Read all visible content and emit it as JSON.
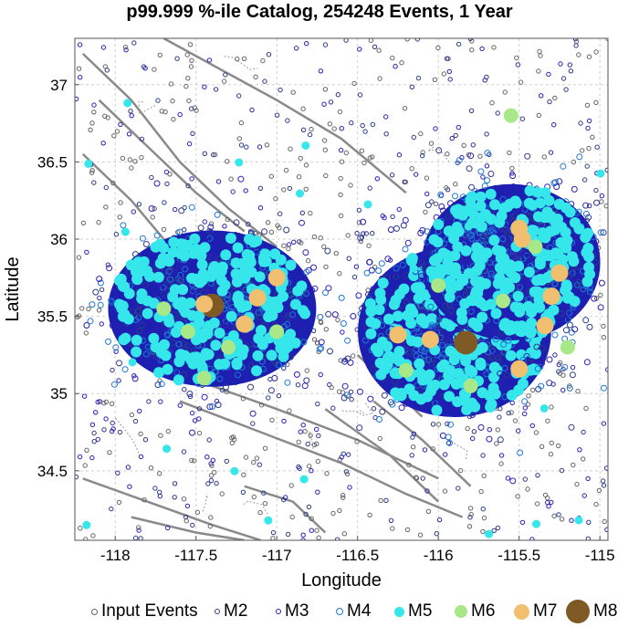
{
  "chart_data": {
    "type": "scatter",
    "title": "p99.999 %-ile Catalog, 254248 Events, 1 Year",
    "xlabel": "Longitude",
    "ylabel": "Latitude",
    "xlim": [
      -118.25,
      -114.95
    ],
    "ylim": [
      34.05,
      37.3
    ],
    "xticks": [
      -118,
      -117.5,
      -117,
      -116.5,
      -116,
      -115.5,
      -115
    ],
    "yticks": [
      34.5,
      35,
      35.5,
      36,
      36.5,
      37
    ],
    "grid": true,
    "legend_position": "bottom",
    "clusters": [
      {
        "center": [
          -117.4,
          35.55
        ],
        "radius": [
          0.7,
          0.55
        ]
      },
      {
        "center": [
          -115.9,
          35.4
        ],
        "radius": [
          0.65,
          0.6
        ]
      },
      {
        "center": [
          -115.55,
          35.85
        ],
        "radius": [
          0.6,
          0.55
        ]
      }
    ],
    "series": [
      {
        "name": "Input Events",
        "style": "ring",
        "color": "#666666",
        "fill": "none"
      },
      {
        "name": "M2",
        "style": "ring",
        "color": "#2b3a8c",
        "fill": "none"
      },
      {
        "name": "M3",
        "style": "ring",
        "color": "#2a1fb5",
        "fill": "none"
      },
      {
        "name": "M4",
        "style": "ring",
        "color": "#1e78d4",
        "fill": "none"
      },
      {
        "name": "M5",
        "style": "dot",
        "color": "#35e6ea",
        "fill": "#35e6ea"
      },
      {
        "name": "M6",
        "style": "dot",
        "color": "#a8e888",
        "fill": "#a8e888"
      },
      {
        "name": "M7",
        "style": "dot",
        "color": "#f0c070",
        "fill": "#f0c070"
      },
      {
        "name": "M8",
        "style": "dot",
        "color": "#7f5a25",
        "fill": "#7f5a25"
      }
    ],
    "big_events": [
      {
        "mag": "M8",
        "lon": -117.4,
        "lat": 35.57
      },
      {
        "mag": "M8",
        "lon": -115.83,
        "lat": 35.33
      },
      {
        "mag": "M7",
        "lon": -117.45,
        "lat": 35.58
      },
      {
        "mag": "M7",
        "lon": -117.2,
        "lat": 35.45
      },
      {
        "mag": "M7",
        "lon": -117.0,
        "lat": 35.75
      },
      {
        "mag": "M7",
        "lon": -117.12,
        "lat": 35.62
      },
      {
        "mag": "M7",
        "lon": -116.05,
        "lat": 35.35
      },
      {
        "mag": "M7",
        "lon": -116.25,
        "lat": 35.38
      },
      {
        "mag": "M7",
        "lon": -115.5,
        "lat": 35.16
      },
      {
        "mag": "M7",
        "lon": -115.34,
        "lat": 35.44
      },
      {
        "mag": "M7",
        "lon": -115.5,
        "lat": 36.07
      },
      {
        "mag": "M7",
        "lon": -115.25,
        "lat": 35.78
      },
      {
        "mag": "M7",
        "lon": -115.3,
        "lat": 35.63
      },
      {
        "mag": "M7",
        "lon": -115.48,
        "lat": 36.0
      },
      {
        "mag": "M6",
        "lon": -117.7,
        "lat": 35.55
      },
      {
        "mag": "M6",
        "lon": -117.55,
        "lat": 35.4
      },
      {
        "mag": "M6",
        "lon": -117.3,
        "lat": 35.3
      },
      {
        "mag": "M6",
        "lon": -117.45,
        "lat": 35.1
      },
      {
        "mag": "M6",
        "lon": -117.0,
        "lat": 35.4
      },
      {
        "mag": "M6",
        "lon": -116.2,
        "lat": 35.15
      },
      {
        "mag": "M6",
        "lon": -115.8,
        "lat": 35.05
      },
      {
        "mag": "M6",
        "lon": -115.6,
        "lat": 35.6
      },
      {
        "mag": "M6",
        "lon": -115.4,
        "lat": 35.95
      },
      {
        "mag": "M6",
        "lon": -115.55,
        "lat": 36.8
      },
      {
        "mag": "M6",
        "lon": -116.0,
        "lat": 35.7
      },
      {
        "mag": "M6",
        "lon": -115.2,
        "lat": 35.3
      }
    ],
    "fault_lines": [
      [
        [
          -118.2,
          37.2
        ],
        [
          -117.9,
          36.9
        ],
        [
          -117.6,
          36.5
        ],
        [
          -117.3,
          36.2
        ],
        [
          -117.0,
          35.95
        ]
      ],
      [
        [
          -118.1,
          36.9
        ],
        [
          -117.8,
          36.6
        ],
        [
          -117.5,
          36.3
        ],
        [
          -117.2,
          36.05
        ]
      ],
      [
        [
          -118.2,
          36.55
        ],
        [
          -117.9,
          36.25
        ],
        [
          -117.7,
          36.0
        ]
      ],
      [
        [
          -117.7,
          37.3
        ],
        [
          -117.0,
          36.9
        ],
        [
          -116.6,
          36.65
        ],
        [
          -116.2,
          36.3
        ]
      ],
      [
        [
          -117.6,
          34.95
        ],
        [
          -117.1,
          34.75
        ],
        [
          -116.6,
          34.55
        ],
        [
          -116.2,
          34.35
        ],
        [
          -115.85,
          34.2
        ]
      ],
      [
        [
          -117.4,
          35.05
        ],
        [
          -117.0,
          34.9
        ],
        [
          -116.5,
          34.7
        ],
        [
          -116.0,
          34.45
        ]
      ],
      [
        [
          -118.2,
          34.45
        ],
        [
          -117.8,
          34.3
        ],
        [
          -117.4,
          34.15
        ],
        [
          -117.1,
          34.05
        ]
      ],
      [
        [
          -117.9,
          34.2
        ],
        [
          -117.5,
          34.1
        ],
        [
          -117.2,
          34.05
        ]
      ],
      [
        [
          -116.7,
          34.9
        ],
        [
          -116.3,
          34.6
        ],
        [
          -116.0,
          34.3
        ]
      ],
      [
        [
          -116.4,
          34.95
        ],
        [
          -116.1,
          34.7
        ],
        [
          -115.8,
          34.4
        ]
      ],
      [
        [
          -117.2,
          34.4
        ],
        [
          -116.9,
          34.3
        ],
        [
          -116.7,
          34.1
        ]
      ],
      [
        [
          -116.5,
          35.25
        ],
        [
          -116.3,
          35.05
        ],
        [
          -116.1,
          34.85
        ]
      ]
    ],
    "random_seed": 1234
  }
}
